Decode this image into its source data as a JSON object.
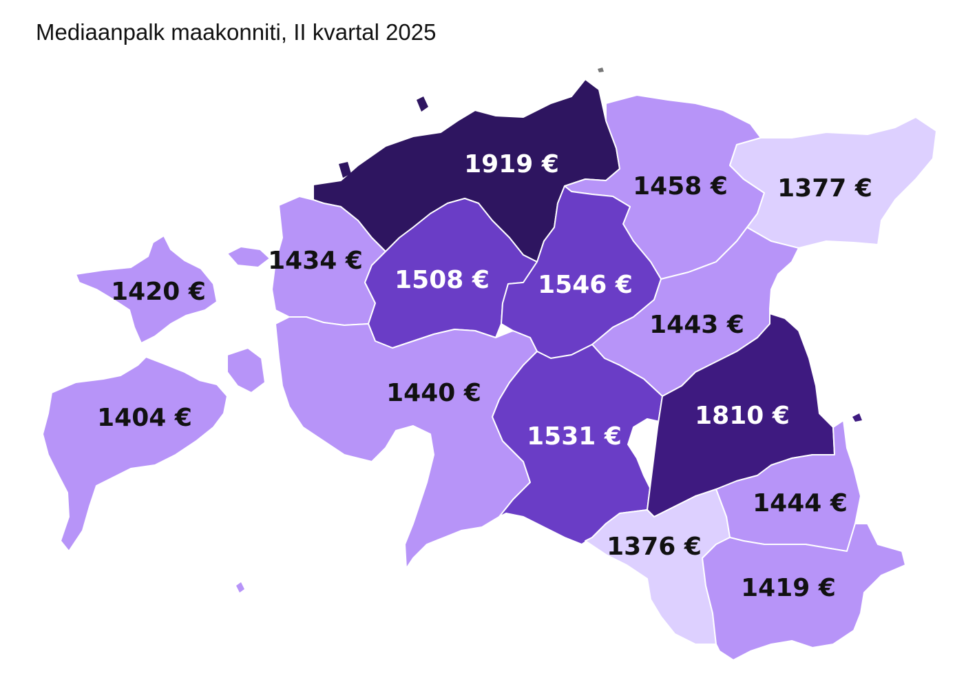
{
  "title": "Mediaanpalk maakonniti, II kvartal 2025",
  "colors": {
    "lightest": "#ddd0ff",
    "light": "#b794f8",
    "medium": "#6a3dc6",
    "dark": "#3e1a80",
    "darkest": "#2e1560",
    "label_light": "#ffffff",
    "label_dark": "#111111"
  },
  "regions": [
    {
      "id": "harju",
      "label": "1919 €",
      "value": 1919
    },
    {
      "id": "laane-viru",
      "label": "1458 €",
      "value": 1458
    },
    {
      "id": "ida-viru",
      "label": "1377 €",
      "value": 1377
    },
    {
      "id": "hiiu",
      "label": "1420 €",
      "value": 1420
    },
    {
      "id": "laane",
      "label": "1434 €",
      "value": 1434
    },
    {
      "id": "rapla",
      "label": "1508 €",
      "value": 1508
    },
    {
      "id": "jarva",
      "label": "1546 €",
      "value": 1546
    },
    {
      "id": "jogeva",
      "label": "1443 €",
      "value": 1443
    },
    {
      "id": "saare",
      "label": "1404 €",
      "value": 1404
    },
    {
      "id": "parnu",
      "label": "1440 €",
      "value": 1440
    },
    {
      "id": "viljandi",
      "label": "1531 €",
      "value": 1531
    },
    {
      "id": "tartu",
      "label": "1810 €",
      "value": 1810
    },
    {
      "id": "polva",
      "label": "1444 €",
      "value": 1444
    },
    {
      "id": "valga",
      "label": "1376 €",
      "value": 1376
    },
    {
      "id": "voru",
      "label": "1419 €",
      "value": 1419
    }
  ]
}
